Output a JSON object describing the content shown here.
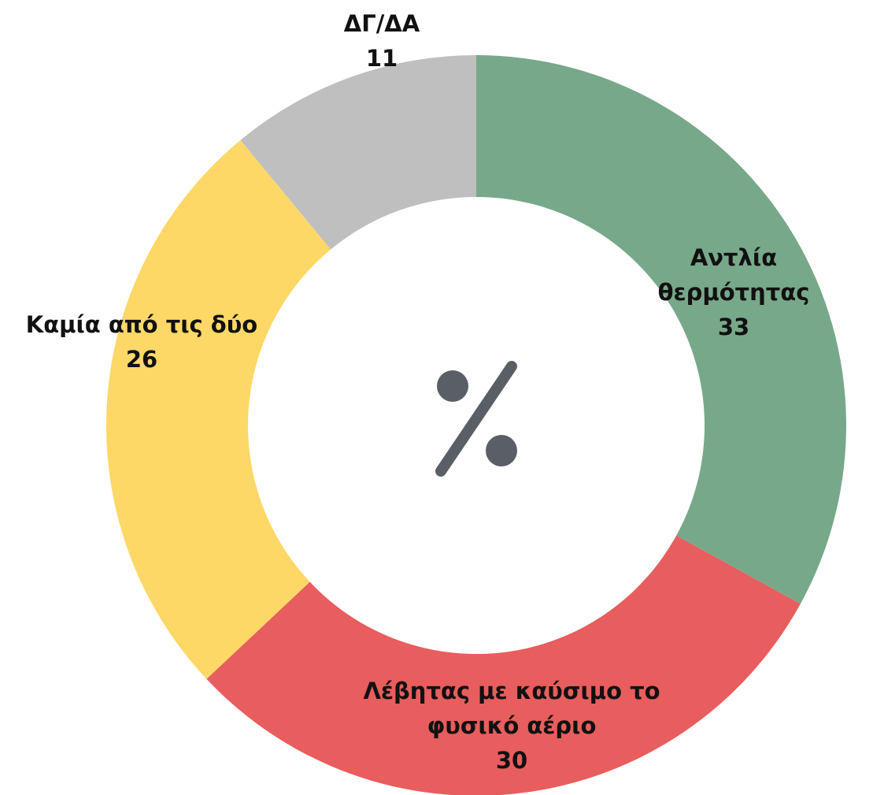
{
  "chart_data": {
    "type": "donut",
    "categories": [
      "Αντλία θερμότητας",
      "Λέβητας με καύσιμο το φυσικό αέριο",
      "Καμία από τις δύο",
      "ΔΓ/ΔΑ"
    ],
    "values": [
      33,
      30,
      26,
      11
    ],
    "colors": [
      "#78a88a",
      "#e85d5d",
      "#fdd867",
      "#bfbfbf"
    ]
  }
}
